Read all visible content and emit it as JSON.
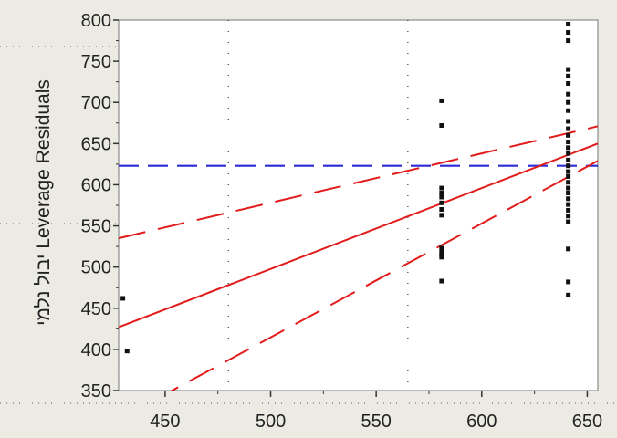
{
  "chart_data": {
    "type": "scatter",
    "title": "",
    "xlabel": "",
    "ylabel": "יבול נלמי Leverage Residuals",
    "xlim": [
      428,
      655
    ],
    "ylim": [
      350,
      800
    ],
    "xticks": [
      "450",
      "500",
      "550",
      "600",
      "650"
    ],
    "yticks": [
      "350",
      "400",
      "450",
      "500",
      "550",
      "600",
      "650",
      "700",
      "750",
      "800"
    ],
    "grid": true,
    "legend": "none",
    "points": [
      {
        "x": 430,
        "y": 462
      },
      {
        "x": 432,
        "y": 398
      },
      {
        "x": 581,
        "y": 702
      },
      {
        "x": 581,
        "y": 672
      },
      {
        "x": 581,
        "y": 596
      },
      {
        "x": 581,
        "y": 590
      },
      {
        "x": 581,
        "y": 585
      },
      {
        "x": 581,
        "y": 578
      },
      {
        "x": 581,
        "y": 570
      },
      {
        "x": 581,
        "y": 563
      },
      {
        "x": 581,
        "y": 523
      },
      {
        "x": 581,
        "y": 518
      },
      {
        "x": 581,
        "y": 515
      },
      {
        "x": 581,
        "y": 512
      },
      {
        "x": 581,
        "y": 483
      },
      {
        "x": 641,
        "y": 795
      },
      {
        "x": 641,
        "y": 785
      },
      {
        "x": 641,
        "y": 775
      },
      {
        "x": 641,
        "y": 740
      },
      {
        "x": 641,
        "y": 732
      },
      {
        "x": 641,
        "y": 723
      },
      {
        "x": 641,
        "y": 710
      },
      {
        "x": 641,
        "y": 700
      },
      {
        "x": 641,
        "y": 690
      },
      {
        "x": 641,
        "y": 677
      },
      {
        "x": 641,
        "y": 668
      },
      {
        "x": 641,
        "y": 660
      },
      {
        "x": 641,
        "y": 652
      },
      {
        "x": 641,
        "y": 645
      },
      {
        "x": 641,
        "y": 638
      },
      {
        "x": 641,
        "y": 630
      },
      {
        "x": 641,
        "y": 623
      },
      {
        "x": 641,
        "y": 616
      },
      {
        "x": 641,
        "y": 610
      },
      {
        "x": 641,
        "y": 603
      },
      {
        "x": 641,
        "y": 596
      },
      {
        "x": 641,
        "y": 590
      },
      {
        "x": 641,
        "y": 583
      },
      {
        "x": 641,
        "y": 576
      },
      {
        "x": 641,
        "y": 569
      },
      {
        "x": 641,
        "y": 562
      },
      {
        "x": 641,
        "y": 555
      },
      {
        "x": 641,
        "y": 522
      },
      {
        "x": 641,
        "y": 482
      },
      {
        "x": 641,
        "y": 466
      }
    ],
    "lines": {
      "mean": {
        "y": 623,
        "color": "#2b2bd6",
        "style": "dashed"
      },
      "fit": {
        "from": [
          428,
          427
        ],
        "to": [
          655,
          650
        ],
        "color": "#e21b1b",
        "style": "solid"
      },
      "upper_conf": {
        "from": [
          428,
          535
        ],
        "to": [
          655,
          671
        ],
        "color": "#e21b1b",
        "style": "dashed"
      },
      "lower_conf": {
        "from": [
          428,
          315
        ],
        "to": [
          655,
          629
        ],
        "color": "#e21b1b",
        "style": "dashed"
      }
    },
    "colors": {
      "points": "#111111",
      "background": "#ffffff",
      "panel": "#ecebe3"
    }
  }
}
